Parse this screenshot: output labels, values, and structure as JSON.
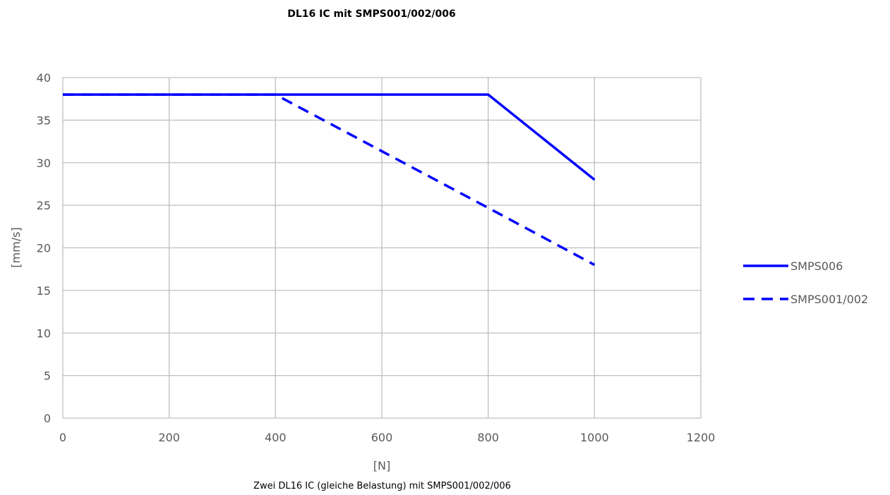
{
  "chart_data": {
    "type": "line",
    "title": "DL16 IC mit SMPS001/002/006",
    "subtitle": "Zwei DL16 IC (gleiche Belastung) mit SMPS001/002/006",
    "xlabel": "[N]",
    "ylabel": "[mm/s]",
    "xlim": [
      0,
      1200
    ],
    "ylim": [
      0,
      40
    ],
    "xticks": [
      "0",
      "200",
      "400",
      "600",
      "800",
      "1000",
      "1200"
    ],
    "yticks": [
      "0",
      "5",
      "10",
      "15",
      "20",
      "25",
      "30",
      "35",
      "40"
    ],
    "grid": true,
    "legend_position": "right",
    "series": [
      {
        "name": "SMPS006",
        "style": "solid",
        "color": "#0000ff",
        "x": [
          0,
          400,
          800,
          1000
        ],
        "y": [
          38,
          38,
          38,
          28
        ]
      },
      {
        "name": "SMPS001/002",
        "style": "dashed",
        "color": "#0000ff",
        "x": [
          0,
          400,
          800,
          1000
        ],
        "y": [
          38,
          38,
          24.7,
          18
        ]
      }
    ]
  }
}
